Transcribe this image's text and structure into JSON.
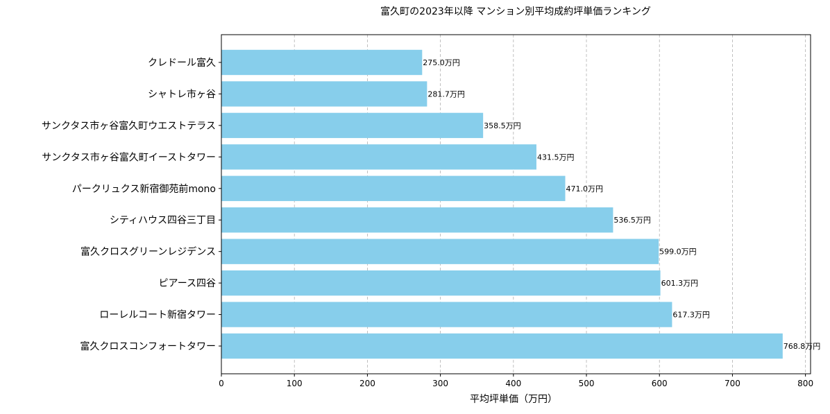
{
  "chart_data": {
    "type": "bar",
    "orientation": "horizontal",
    "title": "富久町の2023年以降 マンション別平均成約坪単価ランキング",
    "xlabel": "平均坪単価（万円）",
    "ylabel": "",
    "categories": [
      "クレドール富久",
      "シャトレ市ヶ谷",
      "サンクタス市ヶ谷富久町ウエストテラス",
      "サンクタス市ヶ谷富久町イーストタワー",
      "パークリュクス新宿御苑前mono",
      "シティハウス四谷三丁目",
      "富久クロスグリーンレジデンス",
      "ピアース四谷",
      "ローレルコート新宿タワー",
      "富久クロスコンフォートタワー"
    ],
    "values": [
      275.0,
      281.7,
      358.5,
      431.5,
      471.0,
      536.5,
      599.0,
      601.3,
      617.3,
      768.8
    ],
    "value_labels": [
      "275.0万円",
      "281.7万円",
      "358.5万円",
      "431.5万円",
      "471.0万円",
      "536.5万円",
      "599.0万円",
      "601.3万円",
      "617.3万円",
      "768.8万円"
    ],
    "xlim": [
      0,
      807
    ],
    "xticks": [
      0,
      100,
      200,
      300,
      400,
      500,
      600,
      700,
      800
    ],
    "xtick_labels": [
      "0",
      "100",
      "200",
      "300",
      "400",
      "500",
      "600",
      "700",
      "800"
    ],
    "grid": "x, dashed",
    "bar_color": "#87CEEB"
  }
}
